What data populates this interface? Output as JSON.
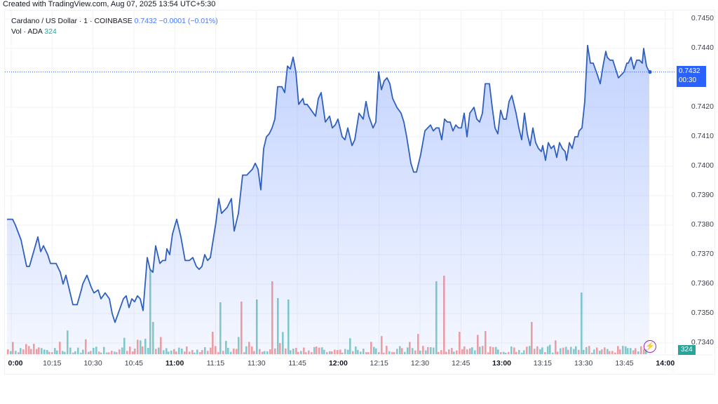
{
  "credit": "Created with TradingView.com, Aug 07, 2025 13:54 UTC+5:30",
  "legend": {
    "symbol": "Cardano / US Dollar · 1 · COINBASE",
    "last": "0.7432",
    "change": "−0.0001 (−0.01%)",
    "vol_label": "Vol · ADA",
    "vol_value": "324"
  },
  "price_tag": {
    "price": "0.7432",
    "countdown": "00:30"
  },
  "volume_tag": "324",
  "colors": {
    "line": "#2f5fbf",
    "fill": "#2962ff",
    "up": "#26a69a",
    "down": "#ef5350",
    "tag": "#2962ff"
  },
  "chart_data": {
    "type": "area",
    "title": "Cardano / US Dollar · 1 · COINBASE",
    "xlabel": "",
    "ylabel": "",
    "y_ticks": [
      "0.7450",
      "0.7440",
      "0.7420",
      "0.7410",
      "0.7400",
      "0.7390",
      "0.7380",
      "0.7370",
      "0.7360",
      "0.7350",
      "0.7340"
    ],
    "x_ticks": [
      "0:00",
      "10:15",
      "10:30",
      "10:45",
      "11:00",
      "11:15",
      "11:30",
      "11:45",
      "12:00",
      "12:15",
      "12:30",
      "12:45",
      "13:00",
      "13:15",
      "13:30",
      "13:45",
      "14:00"
    ],
    "ylim": [
      0.7337,
      0.7455
    ],
    "grid": true,
    "last_price": 0.7432,
    "series": [
      {
        "name": "ADA/USD",
        "points": [
          [
            10,
            0.7382
          ],
          [
            18,
            0.7382
          ],
          [
            22,
            0.738
          ],
          [
            30,
            0.7375
          ],
          [
            38,
            0.7366
          ],
          [
            42,
            0.7366
          ],
          [
            48,
            0.7371
          ],
          [
            54,
            0.7376
          ],
          [
            58,
            0.7371
          ],
          [
            62,
            0.7373
          ],
          [
            68,
            0.737
          ],
          [
            72,
            0.7367
          ],
          [
            80,
            0.7367
          ],
          [
            86,
            0.7364
          ],
          [
            90,
            0.736
          ],
          [
            94,
            0.7363
          ],
          [
            98,
            0.7359
          ],
          [
            104,
            0.7353
          ],
          [
            110,
            0.7353
          ],
          [
            116,
            0.7358
          ],
          [
            118,
            0.736
          ],
          [
            124,
            0.7363
          ],
          [
            130,
            0.7359
          ],
          [
            134,
            0.7357
          ],
          [
            140,
            0.7358
          ],
          [
            144,
            0.7355
          ],
          [
            150,
            0.7357
          ],
          [
            156,
            0.7355
          ],
          [
            160,
            0.735
          ],
          [
            164,
            0.7347
          ],
          [
            170,
            0.7351
          ],
          [
            176,
            0.7355
          ],
          [
            180,
            0.7356
          ],
          [
            184,
            0.7352
          ],
          [
            188,
            0.7355
          ],
          [
            192,
            0.7354
          ],
          [
            196,
            0.7356
          ],
          [
            200,
            0.7355
          ],
          [
            204,
            0.7351
          ],
          [
            210,
            0.7369
          ],
          [
            214,
            0.7365
          ],
          [
            218,
            0.7364
          ],
          [
            222,
            0.7373
          ],
          [
            228,
            0.7367
          ],
          [
            232,
            0.7368
          ],
          [
            236,
            0.7368
          ],
          [
            238,
            0.7372
          ],
          [
            242,
            0.737
          ],
          [
            246,
            0.7377
          ],
          [
            252,
            0.7382
          ],
          [
            258,
            0.7376
          ],
          [
            264,
            0.7368
          ],
          [
            270,
            0.7368
          ],
          [
            275,
            0.7369
          ],
          [
            280,
            0.7366
          ],
          [
            284,
            0.7365
          ],
          [
            288,
            0.7366
          ],
          [
            292,
            0.737
          ],
          [
            296,
            0.7368
          ],
          [
            300,
            0.7369
          ],
          [
            308,
            0.7381
          ],
          [
            312,
            0.7389
          ],
          [
            316,
            0.7384
          ],
          [
            320,
            0.7385
          ],
          [
            324,
            0.7386
          ],
          [
            330,
            0.7389
          ],
          [
            334,
            0.7378
          ],
          [
            340,
            0.7384
          ],
          [
            346,
            0.7397
          ],
          [
            352,
            0.7397
          ],
          [
            356,
            0.7398
          ],
          [
            360,
            0.7399
          ],
          [
            364,
            0.7401
          ],
          [
            368,
            0.7399
          ],
          [
            372,
            0.7392
          ],
          [
            376,
            0.7406
          ],
          [
            380,
            0.741
          ],
          [
            384,
            0.7411
          ],
          [
            388,
            0.7413
          ],
          [
            392,
            0.7416
          ],
          [
            396,
            0.7427
          ],
          [
            402,
            0.7427
          ],
          [
            406,
            0.7425
          ],
          [
            410,
            0.7434
          ],
          [
            414,
            0.7433
          ],
          [
            418,
            0.7437
          ],
          [
            422,
            0.7432
          ],
          [
            426,
            0.7421
          ],
          [
            432,
            0.7423
          ],
          [
            434,
            0.7421
          ],
          [
            438,
            0.7421
          ],
          [
            444,
            0.7419
          ],
          [
            450,
            0.7417
          ],
          [
            454,
            0.7423
          ],
          [
            458,
            0.7425
          ],
          [
            464,
            0.7415
          ],
          [
            470,
            0.7417
          ],
          [
            474,
            0.7413
          ],
          [
            478,
            0.7414
          ],
          [
            482,
            0.7416
          ],
          [
            488,
            0.741
          ],
          [
            492,
            0.7409
          ],
          [
            496,
            0.7413
          ],
          [
            502,
            0.7407
          ],
          [
            506,
            0.7409
          ],
          [
            512,
            0.7418
          ],
          [
            518,
            0.7416
          ],
          [
            522,
            0.7422
          ],
          [
            526,
            0.7417
          ],
          [
            532,
            0.7413
          ],
          [
            536,
            0.7415
          ],
          [
            540,
            0.7432
          ],
          [
            544,
            0.7426
          ],
          [
            548,
            0.7429
          ],
          [
            552,
            0.743
          ],
          [
            556,
            0.7428
          ],
          [
            560,
            0.7423
          ],
          [
            566,
            0.742
          ],
          [
            572,
            0.7418
          ],
          [
            576,
            0.7415
          ],
          [
            580,
            0.741
          ],
          [
            586,
            0.7401
          ],
          [
            590,
            0.7398
          ],
          [
            594,
            0.7398
          ],
          [
            600,
            0.7404
          ],
          [
            606,
            0.7412
          ],
          [
            610,
            0.7413
          ],
          [
            614,
            0.7414
          ],
          [
            618,
            0.7412
          ],
          [
            622,
            0.7413
          ],
          [
            626,
            0.7413
          ],
          [
            630,
            0.7409
          ],
          [
            634,
            0.7416
          ],
          [
            638,
            0.7415
          ],
          [
            642,
            0.7415
          ],
          [
            646,
            0.7412
          ],
          [
            650,
            0.7414
          ],
          [
            654,
            0.7413
          ],
          [
            658,
            0.7413
          ],
          [
            662,
            0.7418
          ],
          [
            666,
            0.741
          ],
          [
            670,
            0.7418
          ],
          [
            676,
            0.742
          ],
          [
            680,
            0.7416
          ],
          [
            684,
            0.7415
          ],
          [
            688,
            0.7418
          ],
          [
            692,
            0.7428
          ],
          [
            698,
            0.7428
          ],
          [
            702,
            0.742
          ],
          [
            706,
            0.7413
          ],
          [
            710,
            0.7411
          ],
          [
            714,
            0.7419
          ],
          [
            718,
            0.7416
          ],
          [
            722,
            0.7416
          ],
          [
            726,
            0.7422
          ],
          [
            730,
            0.7424
          ],
          [
            736,
            0.7418
          ],
          [
            740,
            0.7413
          ],
          [
            744,
            0.7409
          ],
          [
            748,
            0.7418
          ],
          [
            752,
            0.7411
          ],
          [
            756,
            0.7407
          ],
          [
            760,
            0.7413
          ],
          [
            764,
            0.7408
          ],
          [
            768,
            0.7406
          ],
          [
            772,
            0.7405
          ],
          [
            774,
            0.7407
          ],
          [
            778,
            0.7402
          ],
          [
            782,
            0.7408
          ],
          [
            786,
            0.7406
          ],
          [
            790,
            0.7407
          ],
          [
            794,
            0.7403
          ],
          [
            798,
            0.7408
          ],
          [
            802,
            0.7406
          ],
          [
            806,
            0.7405
          ],
          [
            808,
            0.7402
          ],
          [
            812,
            0.7408
          ],
          [
            816,
            0.7406
          ],
          [
            820,
            0.741
          ],
          [
            824,
            0.741
          ],
          [
            826,
            0.7412
          ],
          [
            830,
            0.7413
          ],
          [
            834,
            0.7422
          ],
          [
            838,
            0.7441
          ],
          [
            842,
            0.7435
          ],
          [
            846,
            0.7435
          ],
          [
            852,
            0.7431
          ],
          [
            856,
            0.7428
          ],
          [
            860,
            0.7434
          ],
          [
            864,
            0.7439
          ],
          [
            866,
            0.7437
          ],
          [
            870,
            0.7436
          ],
          [
            874,
            0.7436
          ],
          [
            878,
            0.7433
          ],
          [
            882,
            0.743
          ],
          [
            886,
            0.7431
          ],
          [
            890,
            0.7432
          ],
          [
            894,
            0.7435
          ],
          [
            896,
            0.7435
          ],
          [
            900,
            0.7437
          ],
          [
            904,
            0.7433
          ],
          [
            908,
            0.7436
          ],
          [
            912,
            0.7436
          ],
          [
            916,
            0.7435
          ],
          [
            918,
            0.744
          ],
          [
            922,
            0.7434
          ],
          [
            926,
            0.7432
          ]
        ]
      }
    ]
  }
}
